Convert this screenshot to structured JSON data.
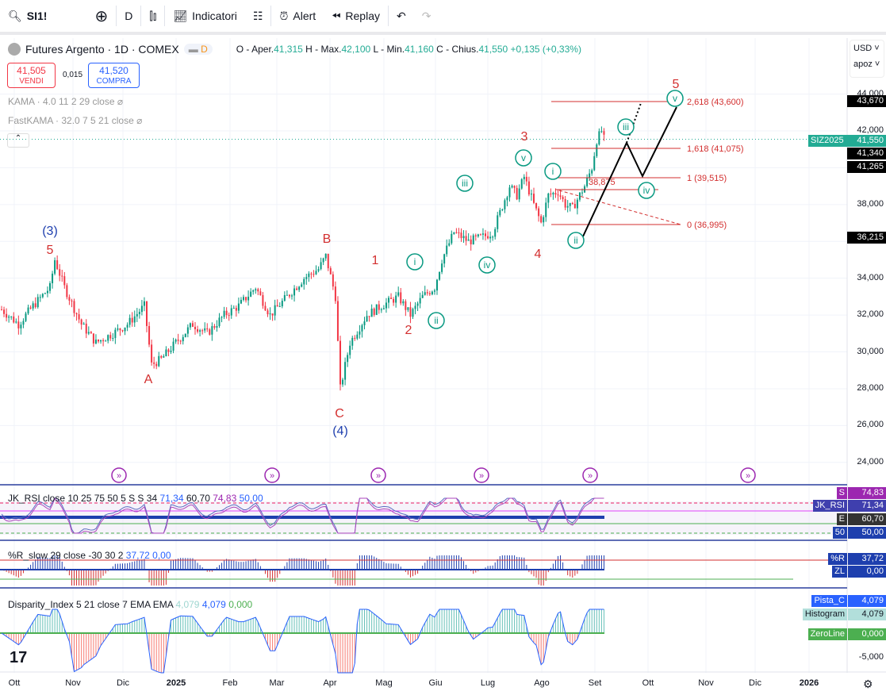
{
  "toolbar": {
    "symbol": "SI1!",
    "interval": "D",
    "indicators": "Indicatori",
    "alert": "Alert",
    "replay": "Replay"
  },
  "legend": {
    "title": "Futures Argento · 1D · COMEX",
    "badge": "D",
    "o_label": "O - Aper.",
    "o": "41,315",
    "h_label": "H - Max.",
    "h": "42,100",
    "l_label": "L - Min.",
    "l": "41,160",
    "c_label": "C - Chius.",
    "c": "41,550",
    "chg": "+0,135 (+0,33%)"
  },
  "trade": {
    "sell_price": "41,505",
    "sell_label": "VENDI",
    "spread": "0,015",
    "buy_price": "41,520",
    "buy_label": "COMPRA"
  },
  "overlays": {
    "kama": "KAMA · 4.0 11 2 29 close",
    "fastkama": "FastKAMA · 32.0 7 5 21 close"
  },
  "axis": {
    "currency": "USD",
    "unit": "apoz",
    "ticks": [
      "44,000",
      "42,000",
      "38,000",
      "34,000",
      "32,000",
      "30,000",
      "28,000",
      "26,000",
      "24,000"
    ],
    "tags": {
      "t1": "43,670",
      "symbol": "SIZ2025",
      "last": "41,550",
      "t2": "41,340",
      "t3": "41,265",
      "t4": "36,215"
    }
  },
  "waves": {
    "w5a": "5",
    "w3p": "(3)",
    "A": "A",
    "B": "B",
    "C": "C",
    "w4p": "(4)",
    "w1": "1",
    "w2": "2",
    "w3": "3",
    "w4": "4",
    "w5": "5",
    "i1": "i",
    "ii1": "ii",
    "iii1": "iii",
    "iv1": "iv",
    "v1": "v",
    "i2": "i",
    "ii2": "ii",
    "iii2": "iii",
    "iv2": "iv",
    "v2": "v"
  },
  "fib": {
    "f2618": "2,618 (43,600)",
    "f1618": "1,618 (41,075)",
    "f1": "1 (39,515)",
    "f0": "0 (36,995)",
    "mid": "38,875"
  },
  "rsi": {
    "title": "JK_RSI close 10 25 75 50 5 S S 34",
    "v1": "71,34",
    "v2": "60,70",
    "v3": "74,83",
    "v4": "50,00",
    "tags": [
      {
        "k": "S",
        "v": "74,83"
      },
      {
        "k": "JK_RSI",
        "v": "71,34"
      },
      {
        "k": "E",
        "v": "60,70"
      },
      {
        "k": "50",
        "v": "50,00"
      }
    ]
  },
  "wr": {
    "title": "%R_slow 29 close -30 30 2",
    "v1": "37,72",
    "v2": "0,00",
    "tags": [
      {
        "k": "%R",
        "v": "37,72"
      },
      {
        "k": "ZL",
        "v": "0,00"
      }
    ]
  },
  "disp": {
    "title": "Disparity_Index 5 21 close 7 EMA EMA",
    "v1": "4,079",
    "v2": "4,079",
    "v3": "0,000",
    "tags": [
      {
        "k": "Pista_C",
        "v": "4,079"
      },
      {
        "k": "Histogram",
        "v": "4,079"
      },
      {
        "k": "ZeroLine",
        "v": "0,000"
      }
    ],
    "tick": "-5,000"
  },
  "time_axis": [
    "Ott",
    "Nov",
    "Dic",
    "2025",
    "Feb",
    "Mar",
    "Apr",
    "Mag",
    "Giu",
    "Lug",
    "Ago",
    "Set",
    "Ott",
    "Nov",
    "Dic",
    "2026"
  ],
  "chart_data": {
    "type": "candlestick",
    "price_path": [
      [
        0,
        32300
      ],
      [
        7,
        31500
      ],
      [
        13,
        32500
      ],
      [
        20,
        33500
      ],
      [
        22,
        35000
      ],
      [
        26,
        33500
      ],
      [
        33,
        31500
      ],
      [
        39,
        30500
      ],
      [
        46,
        31000
      ],
      [
        52,
        31500
      ],
      [
        59,
        32500
      ],
      [
        62,
        29300
      ],
      [
        66,
        29600
      ],
      [
        72,
        30500
      ],
      [
        79,
        31500
      ],
      [
        85,
        31000
      ],
      [
        92,
        32000
      ],
      [
        98,
        32500
      ],
      [
        105,
        33500
      ],
      [
        111,
        32000
      ],
      [
        118,
        33000
      ],
      [
        125,
        34000
      ],
      [
        131,
        34500
      ],
      [
        134,
        35200
      ],
      [
        138,
        33000
      ],
      [
        140,
        28000
      ],
      [
        144,
        30500
      ],
      [
        151,
        32000
      ],
      [
        157,
        32500
      ],
      [
        164,
        33000
      ],
      [
        169,
        32000
      ],
      [
        174,
        33000
      ],
      [
        179,
        33500
      ],
      [
        182,
        35000
      ],
      [
        187,
        36500
      ],
      [
        193,
        36000
      ],
      [
        200,
        36300
      ],
      [
        203,
        36500
      ],
      [
        210,
        39000
      ],
      [
        213,
        38500
      ],
      [
        216,
        39500
      ],
      [
        220,
        38000
      ],
      [
        223,
        37000
      ],
      [
        226,
        38500
      ],
      [
        230,
        38700
      ],
      [
        233,
        38000
      ],
      [
        236,
        37800
      ],
      [
        241,
        39000
      ],
      [
        244,
        40000
      ],
      [
        246,
        41500
      ],
      [
        248,
        42000
      ],
      [
        249,
        41550
      ]
    ]
  }
}
